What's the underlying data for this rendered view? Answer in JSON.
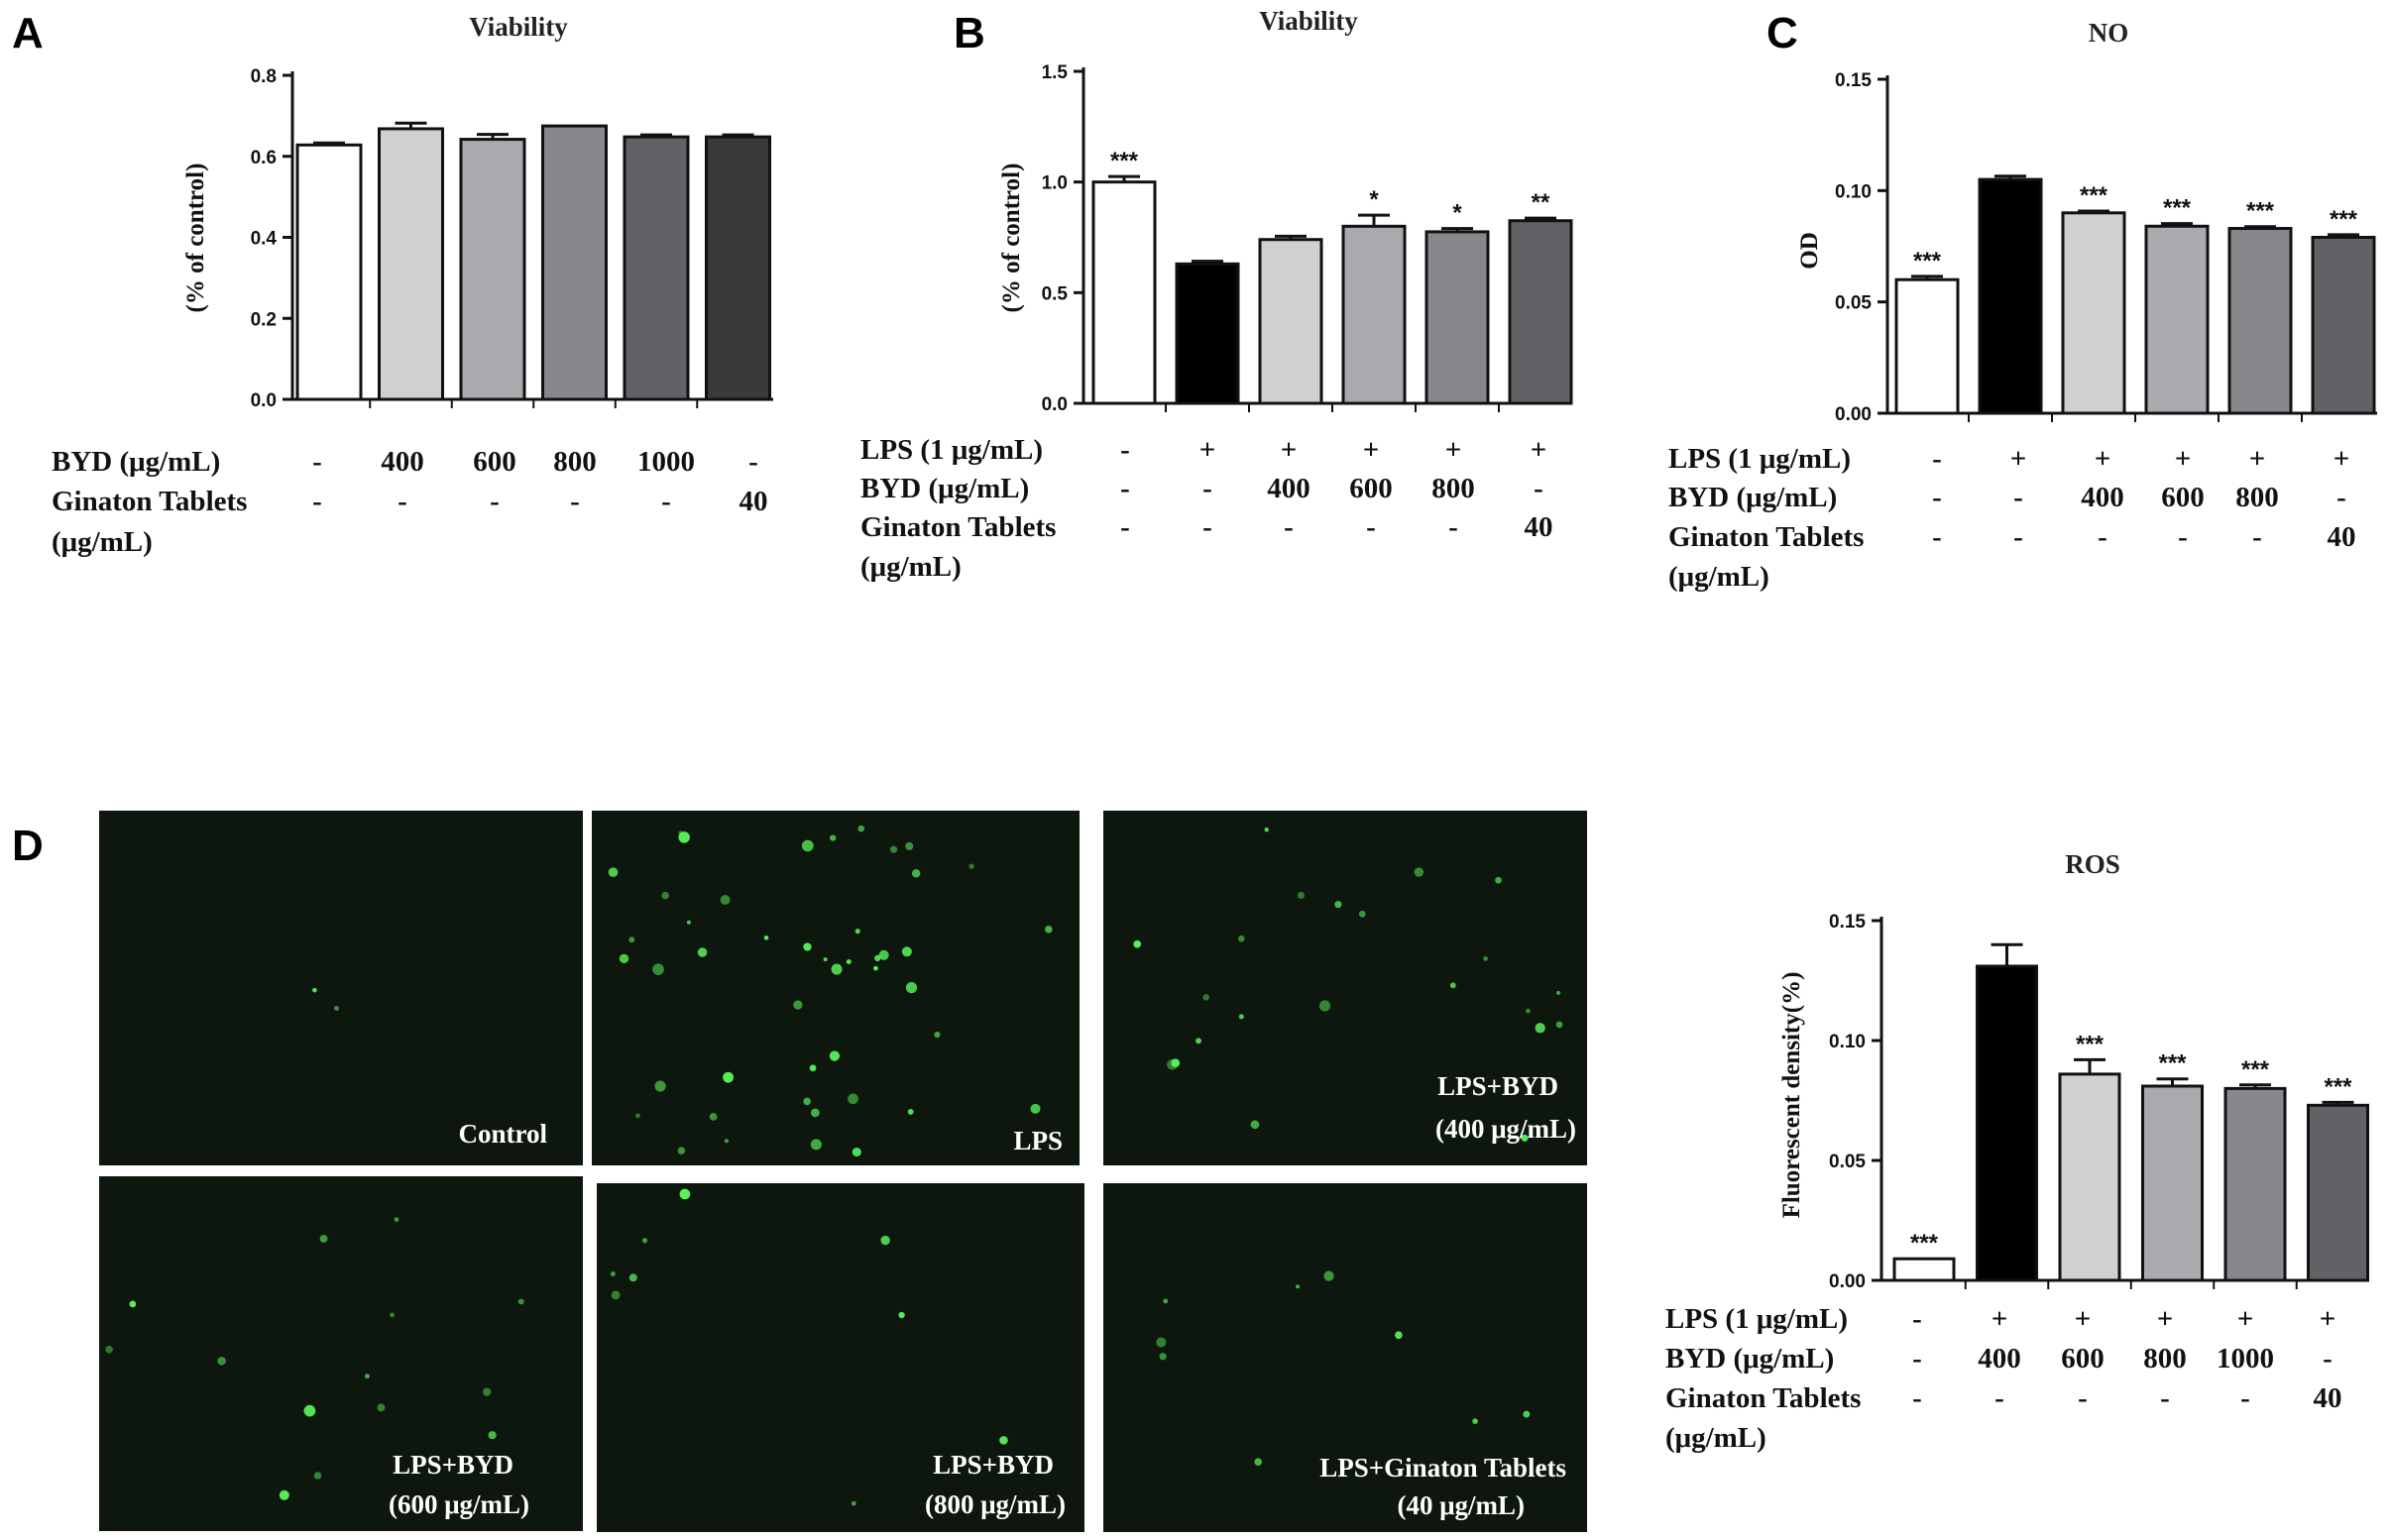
{
  "panel_letters": [
    "A",
    "B",
    "C",
    "D"
  ],
  "chart_data": [
    {
      "panel": "A",
      "type": "bar",
      "title": "Viability",
      "ylabel": "(% of control)",
      "ylim": [
        0,
        0.8
      ],
      "yticks": [
        "0.0",
        "0.2",
        "0.4",
        "0.6",
        "0.8"
      ],
      "values": [
        0.628,
        0.668,
        0.642,
        0.675,
        0.648,
        0.648
      ],
      "errors": [
        0.005,
        0.014,
        0.012,
        0.0,
        0.005,
        0.005
      ],
      "significance": [
        "",
        "",
        "",
        "",
        "",
        ""
      ],
      "bar_colors": [
        "#ffffff",
        "#cfd0d2",
        "#a9aaae",
        "#86878b",
        "#616266",
        "#3a3a3c"
      ],
      "conditions": [
        {
          "label": "BYD (μg/mL)",
          "values": [
            "-",
            "400",
            "600",
            "800",
            "1000",
            "-"
          ]
        },
        {
          "label": "Ginaton Tablets",
          "label2": "(μg/mL)",
          "values": [
            "-",
            "-",
            "-",
            "-",
            "-",
            "40"
          ]
        }
      ]
    },
    {
      "panel": "B",
      "type": "bar",
      "title": "Viability",
      "ylabel": "(% of control)",
      "ylim": [
        0,
        1.5
      ],
      "yticks": [
        "0.0",
        "0.5",
        "1.0",
        "1.5"
      ],
      "values": [
        1.0,
        0.63,
        0.74,
        0.8,
        0.775,
        0.825
      ],
      "errors": [
        0.025,
        0.012,
        0.015,
        0.05,
        0.015,
        0.012
      ],
      "significance": [
        "***",
        "",
        "",
        "*",
        "*",
        "**"
      ],
      "bar_colors": [
        "#ffffff",
        "#000000",
        "#cfd0d2",
        "#a9aaae",
        "#86878b",
        "#616266"
      ],
      "conditions": [
        {
          "label": "LPS (1 μg/mL)",
          "values": [
            "-",
            "+",
            "+",
            "+",
            "+",
            "+"
          ]
        },
        {
          "label": "BYD (μg/mL)",
          "values": [
            "-",
            "-",
            "400",
            "600",
            "800",
            "-"
          ]
        },
        {
          "label": "Ginaton Tablets",
          "label2": "(μg/mL)",
          "values": [
            "-",
            "-",
            "-",
            "-",
            "-",
            "40"
          ]
        }
      ]
    },
    {
      "panel": "C",
      "type": "bar",
      "title": "NO",
      "ylabel": "OD",
      "ylim": [
        0,
        0.15
      ],
      "yticks": [
        "0.00",
        "0.05",
        "0.10",
        "0.15"
      ],
      "values": [
        0.06,
        0.105,
        0.09,
        0.084,
        0.083,
        0.079
      ],
      "errors": [
        0.0015,
        0.0015,
        0.0008,
        0.0012,
        0.0008,
        0.0012
      ],
      "significance": [
        "***",
        "",
        "***",
        "***",
        "***",
        "***"
      ],
      "bar_colors": [
        "#ffffff",
        "#000000",
        "#cfd0d2",
        "#a9aaae",
        "#86878b",
        "#616266"
      ],
      "conditions": [
        {
          "label": "LPS (1 μg/mL)",
          "values": [
            "-",
            "+",
            "+",
            "+",
            "+",
            "+"
          ]
        },
        {
          "label": "BYD (μg/mL)",
          "values": [
            "-",
            "-",
            "400",
            "600",
            "800",
            "-"
          ]
        },
        {
          "label": "Ginaton Tablets",
          "label2": "(μg/mL)",
          "values": [
            "-",
            "-",
            "-",
            "-",
            "-",
            "40"
          ]
        }
      ]
    },
    {
      "panel": "D",
      "type": "bar",
      "title": "ROS",
      "ylabel": "Fluorescent density(%)",
      "ylim": [
        0,
        0.15
      ],
      "yticks": [
        "0.00",
        "0.05",
        "0.10",
        "0.15"
      ],
      "values": [
        0.009,
        0.131,
        0.086,
        0.081,
        0.08,
        0.073
      ],
      "errors": [
        0.0,
        0.009,
        0.006,
        0.003,
        0.0015,
        0.0012
      ],
      "significance": [
        "***",
        "",
        "***",
        "***",
        "***",
        "***"
      ],
      "bar_colors": [
        "#ffffff",
        "#000000",
        "#cfd0d2",
        "#a9aaae",
        "#86878b",
        "#616266"
      ],
      "conditions": [
        {
          "label": "LPS (1 μg/mL)",
          "values": [
            "-",
            "+",
            "+",
            "+",
            "+",
            "+"
          ]
        },
        {
          "label": "BYD (μg/mL)",
          "values": [
            "-",
            "400",
            "600",
            "800",
            "1000",
            "-"
          ]
        },
        {
          "label": "Ginaton Tablets",
          "label2": "(μg/mL)",
          "values": [
            "-",
            "-",
            "-",
            "-",
            "-",
            "40"
          ]
        }
      ]
    }
  ],
  "micrographs": [
    {
      "caption": [
        "Control"
      ],
      "dot_count": 2
    },
    {
      "caption": [
        "LPS"
      ],
      "dot_count": 46
    },
    {
      "caption": [
        "LPS+BYD",
        "(400 μg/mL)"
      ],
      "dot_count": 22
    },
    {
      "caption": [
        "LPS+BYD",
        "(600 μg/mL)"
      ],
      "dot_count": 14
    },
    {
      "caption": [
        "LPS+BYD",
        "(800 μg/mL)"
      ],
      "dot_count": 9
    },
    {
      "caption": [
        "LPS+Ginaton Tablets",
        "(40 μg/mL)"
      ],
      "dot_count": 9
    }
  ],
  "colors": {
    "micrograph_bg": "#0d170d",
    "fluorescence": "#59f05a"
  }
}
